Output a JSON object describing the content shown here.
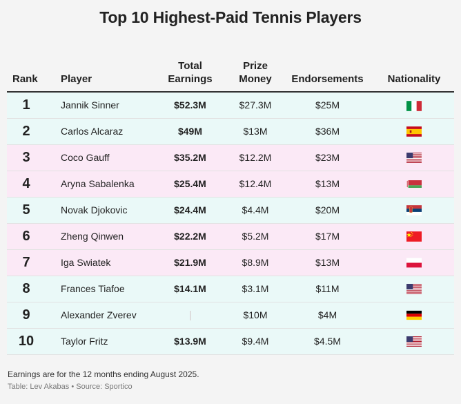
{
  "title": "Top 10 Highest-Paid Tennis Players",
  "headers": {
    "rank": "Rank",
    "player": "Player",
    "total_line1": "Total",
    "total_line2": "Earnings",
    "prize_line1": "Prize",
    "prize_line2": "Money",
    "endorsements": "Endorsements",
    "nationality": "Nationality"
  },
  "chart_data": {
    "type": "table",
    "title": "Top 10 Highest-Paid Tennis Players",
    "columns": [
      "Rank",
      "Player",
      "Total Earnings",
      "Prize Money",
      "Endorsements",
      "Nationality"
    ],
    "rows": [
      {
        "rank": "1",
        "player": "Jannik Sinner",
        "total": "$52.3M",
        "prize": "$27.3M",
        "endorsements": "$25M",
        "flag": "italy-flag",
        "band": "blue"
      },
      {
        "rank": "2",
        "player": "Carlos Alcaraz",
        "total": "$49M",
        "prize": "$13M",
        "endorsements": "$36M",
        "flag": "spain-flag",
        "band": "blue"
      },
      {
        "rank": "3",
        "player": "Coco Gauff",
        "total": "$35.2M",
        "prize": "$12.2M",
        "endorsements": "$23M",
        "flag": "usa-flag",
        "band": "pink"
      },
      {
        "rank": "4",
        "player": "Aryna Sabalenka",
        "total": "$25.4M",
        "prize": "$12.4M",
        "endorsements": "$13M",
        "flag": "belarus-flag",
        "band": "pink"
      },
      {
        "rank": "5",
        "player": "Novak Djokovic",
        "total": "$24.4M",
        "prize": "$4.4M",
        "endorsements": "$20M",
        "flag": "serbia-flag",
        "band": "blue"
      },
      {
        "rank": "6",
        "player": "Zheng Qinwen",
        "total": "$22.2M",
        "prize": "$5.2M",
        "endorsements": "$17M",
        "flag": "china-flag",
        "band": "pink"
      },
      {
        "rank": "7",
        "player": "Iga Swiatek",
        "total": "$21.9M",
        "prize": "$8.9M",
        "endorsements": "$13M",
        "flag": "poland-flag",
        "band": "pink"
      },
      {
        "rank": "8",
        "player": "Frances Tiafoe",
        "total": "$14.1M",
        "prize": "$3.1M",
        "endorsements": "$11M",
        "flag": "usa-flag",
        "band": "blue"
      },
      {
        "rank": "9",
        "player": "Alexander Zverev",
        "total": "",
        "prize": "$10M",
        "endorsements": "$4M",
        "flag": "germany-flag",
        "band": "blue"
      },
      {
        "rank": "10",
        "player": "Taylor Fritz",
        "total": "$13.9M",
        "prize": "$9.4M",
        "endorsements": "$4.5M",
        "flag": "usa-flag",
        "band": "blue"
      }
    ]
  },
  "note": "Earnings are for the 12 months ending August 2025.",
  "source": "Table: Lev Akabas • Source: Sportico",
  "colors": {
    "blue_band": "#eaf9f8",
    "pink_band": "#fbe9f6"
  }
}
